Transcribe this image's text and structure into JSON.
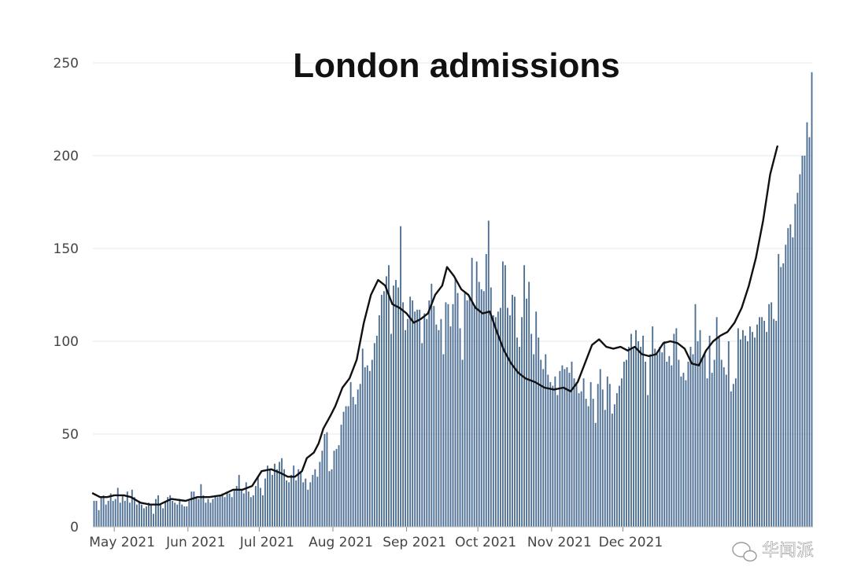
{
  "chart_data": {
    "type": "bar",
    "title": "London admissions",
    "ylim": [
      0,
      250
    ],
    "y_ticks": [
      0,
      50,
      100,
      150,
      200,
      250
    ],
    "x_ticks": [
      {
        "label": "May 2021",
        "date": "2021-05-01"
      },
      {
        "label": "Jun 2021",
        "date": "2021-06-01"
      },
      {
        "label": "Jul 2021",
        "date": "2021-07-01"
      },
      {
        "label": "Aug 2021",
        "date": "2021-08-01"
      },
      {
        "label": "Sep 2021",
        "date": "2021-09-01"
      },
      {
        "label": "Oct 2021",
        "date": "2021-10-01"
      },
      {
        "label": "Nov 2021",
        "date": "2021-11-01"
      },
      {
        "label": "Dec 2021",
        "date": "2021-12-01"
      }
    ],
    "x_start": "2021-04-22",
    "grid": true,
    "bar_color": "#4d6f94",
    "line_color": "#111111",
    "bar_values": [
      14,
      14,
      9,
      16,
      17,
      12,
      14,
      18,
      14,
      15,
      21,
      13,
      17,
      14,
      19,
      13,
      20,
      16,
      12,
      14,
      12,
      10,
      11,
      13,
      12,
      7,
      15,
      17,
      12,
      10,
      14,
      16,
      17,
      14,
      13,
      12,
      15,
      12,
      11,
      11,
      14,
      19,
      19,
      16,
      15,
      23,
      17,
      13,
      15,
      13,
      15,
      17,
      16,
      17,
      18,
      16,
      19,
      18,
      16,
      20,
      22,
      28,
      20,
      18,
      24,
      19,
      16,
      17,
      22,
      27,
      21,
      17,
      26,
      33,
      31,
      28,
      34,
      31,
      35,
      37,
      31,
      25,
      24,
      28,
      33,
      25,
      31,
      30,
      24,
      26,
      20,
      24,
      28,
      31,
      27,
      35,
      41,
      50,
      51,
      30,
      31,
      41,
      42,
      44,
      55,
      62,
      65,
      65,
      78,
      70,
      66,
      74,
      77,
      96,
      86,
      87,
      84,
      90,
      99,
      103,
      114,
      125,
      127,
      135,
      141,
      104,
      130,
      133,
      129,
      162,
      121,
      106,
      112,
      124,
      122,
      116,
      117,
      117,
      99,
      115,
      112,
      122,
      131,
      119,
      109,
      106,
      112,
      93,
      121,
      120,
      108,
      120,
      134,
      126,
      107,
      90,
      126,
      122,
      124,
      145,
      119,
      143,
      132,
      128,
      127,
      147,
      165,
      129,
      114,
      113,
      116,
      118,
      143,
      141,
      118,
      114,
      125,
      124,
      102,
      97,
      113,
      141,
      123,
      132,
      104,
      93,
      116,
      102,
      90,
      85,
      93,
      82,
      78,
      76,
      81,
      71,
      84,
      87,
      85,
      86,
      83,
      89,
      80,
      78,
      72,
      73,
      80,
      69,
      65,
      78,
      69,
      56,
      77,
      85,
      74,
      63,
      81,
      77,
      61,
      66,
      72,
      76,
      80,
      89,
      90,
      97,
      104,
      96,
      106,
      100,
      97,
      103,
      89,
      71,
      93,
      108,
      96,
      93,
      97,
      94,
      100,
      89,
      92,
      87,
      104,
      107,
      90,
      81,
      83,
      79,
      89,
      97,
      93,
      120,
      100,
      106,
      91,
      93,
      80,
      103,
      83,
      90,
      113,
      103,
      90,
      86,
      82,
      100,
      73,
      77,
      80,
      107,
      101,
      106,
      103,
      100,
      108,
      105,
      102,
      109,
      113,
      113,
      111,
      105,
      120,
      121,
      112,
      111,
      147,
      140,
      142,
      152,
      161,
      163,
      156,
      174,
      180,
      190,
      200,
      200,
      218,
      210,
      245
    ],
    "rolling_average": [
      [
        "2021-04-22",
        18
      ],
      [
        "2021-04-25",
        16
      ],
      [
        "2021-04-28",
        16
      ],
      [
        "2021-05-01",
        17
      ],
      [
        "2021-05-05",
        17
      ],
      [
        "2021-05-08",
        16
      ],
      [
        "2021-05-12",
        13
      ],
      [
        "2021-05-16",
        12
      ],
      [
        "2021-05-20",
        12
      ],
      [
        "2021-05-25",
        15
      ],
      [
        "2021-05-31",
        14
      ],
      [
        "2021-06-05",
        16
      ],
      [
        "2021-06-10",
        16
      ],
      [
        "2021-06-15",
        17
      ],
      [
        "2021-06-20",
        20
      ],
      [
        "2021-06-24",
        20
      ],
      [
        "2021-06-28",
        22
      ],
      [
        "2021-07-02",
        30
      ],
      [
        "2021-07-06",
        31
      ],
      [
        "2021-07-10",
        29
      ],
      [
        "2021-07-13",
        27
      ],
      [
        "2021-07-16",
        27
      ],
      [
        "2021-07-19",
        30
      ],
      [
        "2021-07-21",
        37
      ],
      [
        "2021-07-24",
        40
      ],
      [
        "2021-07-26",
        45
      ],
      [
        "2021-07-28",
        53
      ],
      [
        "2021-07-31",
        60
      ],
      [
        "2021-08-02",
        65
      ],
      [
        "2021-08-05",
        75
      ],
      [
        "2021-08-08",
        80
      ],
      [
        "2021-08-11",
        90
      ],
      [
        "2021-08-14",
        110
      ],
      [
        "2021-08-17",
        125
      ],
      [
        "2021-08-20",
        133
      ],
      [
        "2021-08-23",
        130
      ],
      [
        "2021-08-26",
        120
      ],
      [
        "2021-08-29",
        118
      ],
      [
        "2021-09-01",
        115
      ],
      [
        "2021-09-04",
        110
      ],
      [
        "2021-09-07",
        112
      ],
      [
        "2021-09-10",
        115
      ],
      [
        "2021-09-13",
        125
      ],
      [
        "2021-09-16",
        130
      ],
      [
        "2021-09-18",
        140
      ],
      [
        "2021-09-21",
        135
      ],
      [
        "2021-09-24",
        128
      ],
      [
        "2021-09-27",
        125
      ],
      [
        "2021-09-30",
        118
      ],
      [
        "2021-10-03",
        115
      ],
      [
        "2021-10-06",
        116
      ],
      [
        "2021-10-09",
        105
      ],
      [
        "2021-10-12",
        95
      ],
      [
        "2021-10-15",
        88
      ],
      [
        "2021-10-18",
        83
      ],
      [
        "2021-10-21",
        80
      ],
      [
        "2021-10-25",
        78
      ],
      [
        "2021-10-29",
        75
      ],
      [
        "2021-11-02",
        74
      ],
      [
        "2021-11-06",
        75
      ],
      [
        "2021-11-09",
        73
      ],
      [
        "2021-11-12",
        78
      ],
      [
        "2021-11-15",
        88
      ],
      [
        "2021-11-18",
        98
      ],
      [
        "2021-11-21",
        101
      ],
      [
        "2021-11-24",
        97
      ],
      [
        "2021-11-27",
        96
      ],
      [
        "2021-11-30",
        97
      ],
      [
        "2021-12-03",
        95
      ],
      [
        "2021-12-06",
        97
      ],
      [
        "2021-12-09",
        93
      ],
      [
        "2021-12-12",
        92
      ],
      [
        "2021-12-15",
        93
      ],
      [
        "2021-12-18",
        99
      ],
      [
        "2021-12-21",
        100
      ],
      [
        "2021-12-24",
        99
      ],
      [
        "2021-12-27",
        96
      ],
      [
        "2021-12-30",
        88
      ],
      [
        "2022-01-02",
        87
      ],
      [
        "2022-01-05",
        95
      ],
      [
        "2022-01-08",
        100
      ],
      [
        "2022-01-11",
        103
      ],
      [
        "2022-01-14",
        105
      ],
      [
        "2022-01-17",
        110
      ],
      [
        "2022-01-20",
        118
      ],
      [
        "2022-01-23",
        130
      ],
      [
        "2022-01-26",
        145
      ],
      [
        "2022-01-29",
        165
      ],
      [
        "2022-02-01",
        190
      ],
      [
        "2022-02-04",
        205
      ]
    ]
  },
  "watermark": {
    "text": "华闻派"
  }
}
